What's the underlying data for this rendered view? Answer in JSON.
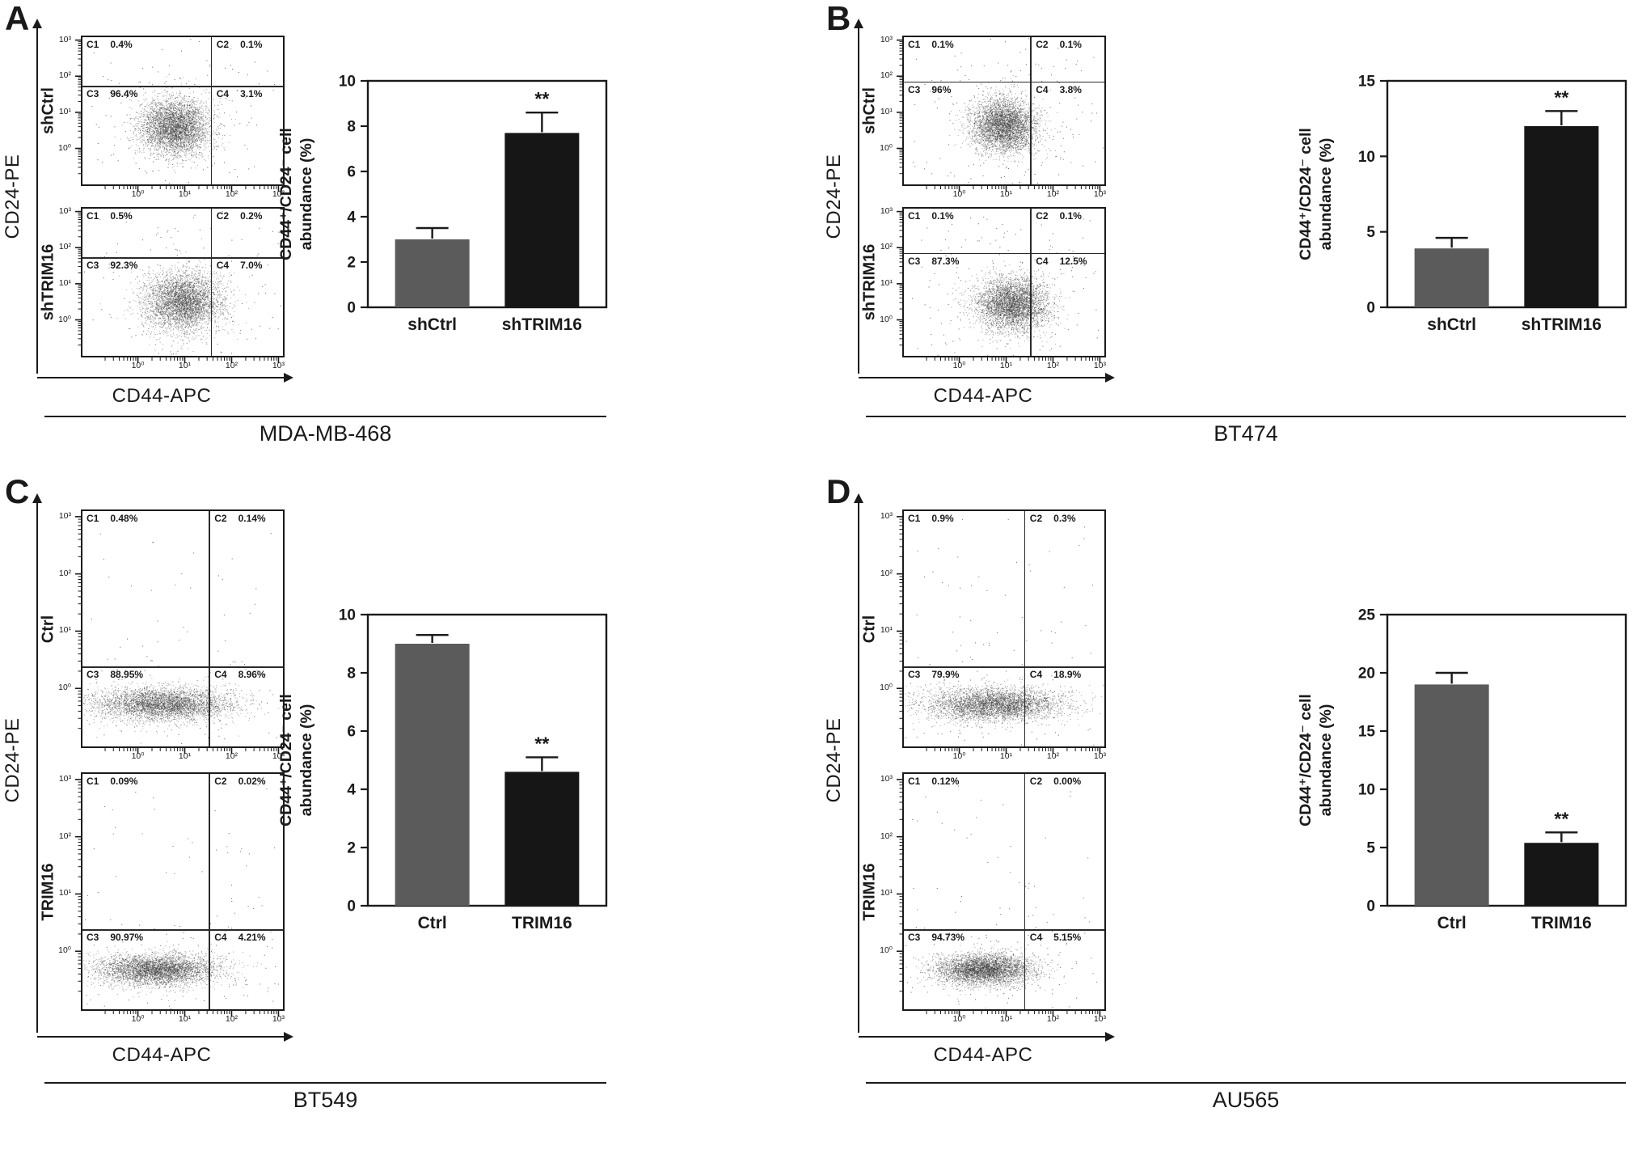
{
  "figure_type": "flow-cytometry-quadrant-plots-with-bar-charts",
  "ink_color": "#1a1a1a",
  "chart_data": [
    {
      "panel": "A",
      "cell_line": "MDA-MB-468",
      "flow": {
        "type": "scatter",
        "xlabel": "CD44-APC",
        "ylabel": "CD24-PE",
        "x_ticks": [
          "10⁰",
          "10¹",
          "10²",
          "10³"
        ],
        "y_ticks": [
          "10³",
          "10²",
          "10¹",
          "10⁰"
        ],
        "plots": [
          {
            "condition": "shCtrl",
            "vline": 0.64,
            "hline": 0.33,
            "cloud": {
              "cx": 0.46,
              "cy": 0.61,
              "sx": 0.085,
              "sy": 0.095,
              "n": 4200
            },
            "quadrants": [
              {
                "name": "C1",
                "value": "0.4%"
              },
              {
                "name": "C2",
                "value": "0.1%"
              },
              {
                "name": "C3",
                "value": "96.4%"
              },
              {
                "name": "C4",
                "value": "3.1%"
              }
            ]
          },
          {
            "condition": "shTRIM16",
            "vline": 0.64,
            "hline": 0.33,
            "cloud": {
              "cx": 0.5,
              "cy": 0.63,
              "sx": 0.095,
              "sy": 0.1,
              "n": 4200
            },
            "quadrants": [
              {
                "name": "C1",
                "value": "0.5%"
              },
              {
                "name": "C2",
                "value": "0.2%"
              },
              {
                "name": "C3",
                "value": "92.3%"
              },
              {
                "name": "C4",
                "value": "7.0%"
              }
            ]
          }
        ]
      },
      "bar": {
        "type": "bar",
        "ylabel_lines": [
          "CD44⁺/CD24⁻ cell",
          "abundance (%)"
        ],
        "categories": [
          "shCtrl",
          "shTRIM16"
        ],
        "values": [
          3.0,
          7.7
        ],
        "errors": [
          0.5,
          0.9
        ],
        "significance": [
          "",
          "**"
        ],
        "ylim": [
          0,
          10
        ],
        "yticks": [
          0,
          2,
          4,
          6,
          8,
          10
        ],
        "bar_colors": [
          "#5b5b5b",
          "#161616"
        ]
      }
    },
    {
      "panel": "B",
      "cell_line": "BT474",
      "flow": {
        "type": "scatter",
        "xlabel": "CD44-APC",
        "ylabel": "CD24-PE",
        "x_ticks": [
          "10⁰",
          "10¹",
          "10²",
          "10³"
        ],
        "y_ticks": [
          "10³",
          "10²",
          "10¹",
          "10⁰"
        ],
        "plots": [
          {
            "condition": "shCtrl",
            "vline": 0.63,
            "hline": 0.3,
            "cloud": {
              "cx": 0.5,
              "cy": 0.6,
              "sx": 0.08,
              "sy": 0.09,
              "n": 4200
            },
            "quadrants": [
              {
                "name": "C1",
                "value": "0.1%"
              },
              {
                "name": "C2",
                "value": "0.1%"
              },
              {
                "name": "C3",
                "value": "96%"
              },
              {
                "name": "C4",
                "value": "3.8%"
              }
            ]
          },
          {
            "condition": "shTRIM16",
            "vline": 0.63,
            "hline": 0.3,
            "cloud": {
              "cx": 0.54,
              "cy": 0.65,
              "sx": 0.09,
              "sy": 0.09,
              "n": 4200
            },
            "quadrants": [
              {
                "name": "C1",
                "value": "0.1%"
              },
              {
                "name": "C2",
                "value": "0.1%"
              },
              {
                "name": "C3",
                "value": "87.3%"
              },
              {
                "name": "C4",
                "value": "12.5%"
              }
            ]
          }
        ]
      },
      "bar": {
        "type": "bar",
        "ylabel_lines": [
          "CD44⁺/CD24⁻ cell",
          "abundance (%)"
        ],
        "categories": [
          "shCtrl",
          "shTRIM16"
        ],
        "values": [
          3.9,
          12.0
        ],
        "errors": [
          0.7,
          1.0
        ],
        "significance": [
          "",
          "**"
        ],
        "ylim": [
          0,
          15
        ],
        "yticks": [
          0,
          5,
          10,
          15
        ],
        "bar_colors": [
          "#5b5b5b",
          "#161616"
        ]
      }
    },
    {
      "panel": "C",
      "cell_line": "BT549",
      "flow": {
        "type": "scatter",
        "xlabel": "CD44-APC",
        "ylabel": "CD24-PE",
        "x_ticks": [
          "10⁰",
          "10¹",
          "10²",
          "10³"
        ],
        "y_ticks": [
          "10³",
          "10²",
          "10¹",
          "10⁰"
        ],
        "plots": [
          {
            "condition": "Ctrl",
            "vline": 0.63,
            "hline": 0.66,
            "cloud": {
              "cx": 0.4,
              "cy": 0.82,
              "sx": 0.17,
              "sy": 0.035,
              "n": 4200
            },
            "quadrants": [
              {
                "name": "C1",
                "value": "0.48%"
              },
              {
                "name": "C2",
                "value": "0.14%"
              },
              {
                "name": "C3",
                "value": "88.95%"
              },
              {
                "name": "C4",
                "value": "8.96%"
              }
            ]
          },
          {
            "condition": "TRIM16",
            "vline": 0.63,
            "hline": 0.66,
            "cloud": {
              "cx": 0.37,
              "cy": 0.83,
              "sx": 0.15,
              "sy": 0.033,
              "n": 4200
            },
            "quadrants": [
              {
                "name": "C1",
                "value": "0.09%"
              },
              {
                "name": "C2",
                "value": "0.02%"
              },
              {
                "name": "C3",
                "value": "90.97%"
              },
              {
                "name": "C4",
                "value": "4.21%"
              }
            ]
          }
        ]
      },
      "bar": {
        "type": "bar",
        "ylabel_lines": [
          "CD44⁺/CD24⁻ cell",
          "abundance (%)"
        ],
        "categories": [
          "Ctrl",
          "TRIM16"
        ],
        "values": [
          9.0,
          4.6
        ],
        "errors": [
          0.3,
          0.5
        ],
        "significance": [
          "",
          "**"
        ],
        "ylim": [
          0,
          10
        ],
        "yticks": [
          0,
          2,
          4,
          6,
          8,
          10
        ],
        "bar_colors": [
          "#5b5b5b",
          "#161616"
        ]
      }
    },
    {
      "panel": "D",
      "cell_line": "AU565",
      "flow": {
        "type": "scatter",
        "xlabel": "CD44-APC",
        "ylabel": "CD24-PE",
        "x_ticks": [
          "10⁰",
          "10¹",
          "10²",
          "10³"
        ],
        "y_ticks": [
          "10³",
          "10²",
          "10¹",
          "10⁰"
        ],
        "plots": [
          {
            "condition": "Ctrl",
            "vline": 0.6,
            "hline": 0.66,
            "cloud": {
              "cx": 0.45,
              "cy": 0.82,
              "sx": 0.17,
              "sy": 0.035,
              "n": 4200
            },
            "quadrants": [
              {
                "name": "C1",
                "value": "0.9%"
              },
              {
                "name": "C2",
                "value": "0.3%"
              },
              {
                "name": "C3",
                "value": "79.9%"
              },
              {
                "name": "C4",
                "value": "18.9%"
              }
            ]
          },
          {
            "condition": "TRIM16",
            "vline": 0.6,
            "hline": 0.66,
            "cloud": {
              "cx": 0.4,
              "cy": 0.83,
              "sx": 0.12,
              "sy": 0.033,
              "n": 4200
            },
            "quadrants": [
              {
                "name": "C1",
                "value": "0.12%"
              },
              {
                "name": "C2",
                "value": "0.00%"
              },
              {
                "name": "C3",
                "value": "94.73%"
              },
              {
                "name": "C4",
                "value": "5.15%"
              }
            ]
          }
        ]
      },
      "bar": {
        "type": "bar",
        "ylabel_lines": [
          "CD44⁺/CD24⁻ cell",
          "abundance (%)"
        ],
        "categories": [
          "Ctrl",
          "TRIM16"
        ],
        "values": [
          19.0,
          5.4
        ],
        "errors": [
          1.0,
          0.9
        ],
        "significance": [
          "",
          "**"
        ],
        "ylim": [
          0,
          25
        ],
        "yticks": [
          0,
          5,
          10,
          15,
          20,
          25
        ],
        "bar_colors": [
          "#5b5b5b",
          "#161616"
        ]
      }
    }
  ]
}
